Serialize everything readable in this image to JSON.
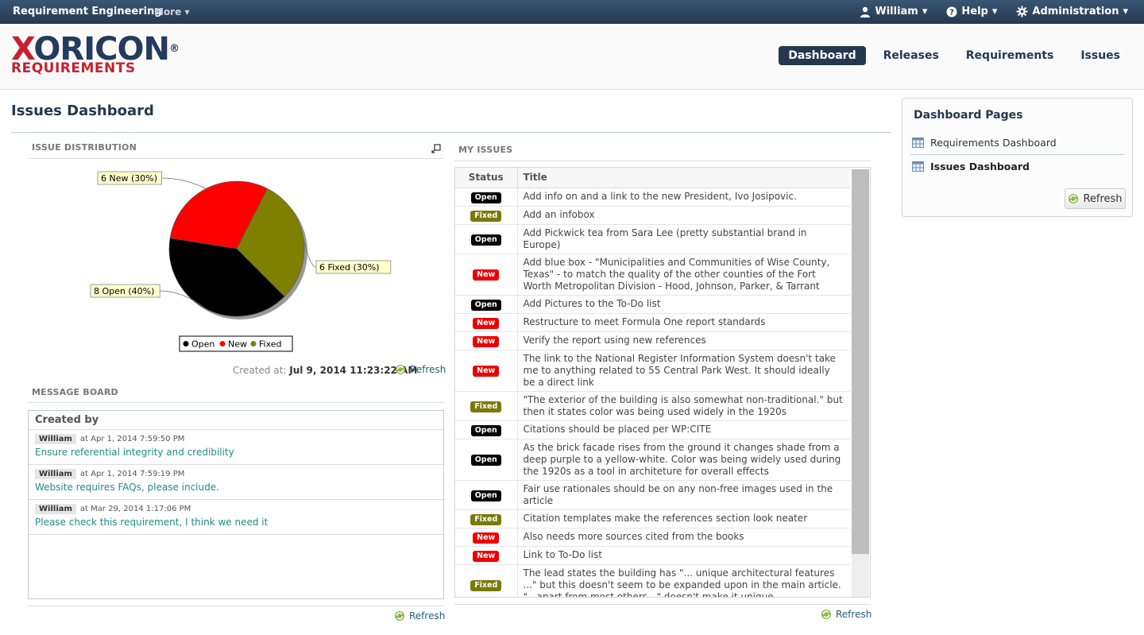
{
  "topbar": {
    "app_title": "Requirement Engineering",
    "more_label": "More",
    "user_label": "William",
    "help_label": "Help",
    "admin_label": "Administration"
  },
  "logo": {
    "line1": "XORICON",
    "line2": "REQUIREMENTS",
    "registered": "®"
  },
  "nav": {
    "dashboard": "Dashboard",
    "releases": "Releases",
    "requirements": "Requirements",
    "issues": "Issues"
  },
  "page": {
    "title": "Issues Dashboard"
  },
  "distribution": {
    "label": "ISSUE DISTRIBUTION",
    "created_prefix": "Created at:",
    "created_value": "Jul 9, 2014 11:23:22 AM",
    "refresh_label": "Refresh"
  },
  "chart_data": {
    "type": "pie",
    "slices": [
      {
        "name": "Open",
        "value": 8,
        "percent": 40,
        "label": "8 Open (40%)",
        "color": "#000000"
      },
      {
        "name": "New",
        "value": 6,
        "percent": 30,
        "label": "6 New (30%)",
        "color": "#ff0000"
      },
      {
        "name": "Fixed",
        "value": 6,
        "percent": 30,
        "label": "6 Fixed (30%)",
        "color": "#808000"
      }
    ],
    "legend": [
      "Open",
      "New",
      "Fixed"
    ],
    "legend_position": "bottom"
  },
  "message_board": {
    "label": "MESSAGE BOARD",
    "column_header": "Created by",
    "messages": [
      {
        "user": "William",
        "timestamp": "at Apr 1, 2014 7:59:50 PM",
        "text": "Ensure referential integrity and credibility"
      },
      {
        "user": "William",
        "timestamp": "at Apr 1, 2014 7:59:19 PM",
        "text": "Website requires FAQs, please include."
      },
      {
        "user": "William",
        "timestamp": "at Mar 29, 2014 1:17:06 PM",
        "text": "Please check this requirement, I think we need it"
      }
    ],
    "refresh_label": "Refresh"
  },
  "my_issues": {
    "label": "MY ISSUES",
    "columns": [
      "Status",
      "Title"
    ],
    "rows": [
      {
        "status": "Open",
        "title": "Add info on and a link to the new President, Ivo Josipovic."
      },
      {
        "status": "Fixed",
        "title": "Add an infobox"
      },
      {
        "status": "Open",
        "title": "Add Pickwick tea from Sara Lee (pretty substantial brand in Europe)"
      },
      {
        "status": "New",
        "title": "Add blue box - \"Municipalities and Communities of Wise County, Texas\" - to match the quality of the other counties of the Fort Worth Metropolitan Division - Hood, Johnson, Parker, & Tarrant"
      },
      {
        "status": "Open",
        "title": "Add Pictures to the To-Do list"
      },
      {
        "status": "New",
        "title": "Restructure to meet Formula One report standards"
      },
      {
        "status": "New",
        "title": "Verify the report using new references"
      },
      {
        "status": "New",
        "title": "The link to the National Register Information System doesn't take me to anything related to 55 Central Park West. It should ideally be a direct link"
      },
      {
        "status": "Fixed",
        "title": "\"The exterior of the building is also somewhat non-traditional.\" but then it states color was being used widely in the 1920s"
      },
      {
        "status": "Open",
        "title": "Citations should be placed per WP:CITE"
      },
      {
        "status": "Open",
        "title": "As the brick facade rises from the ground it changes shade from a deep purple to a yellow-white. Color was being widely used during the 1920s as a tool in architeture for overall effects"
      },
      {
        "status": "Open",
        "title": "Fair use rationales should be on any non-free images used in the article"
      },
      {
        "status": "Fixed",
        "title": "Citation templates make the references section look neater"
      },
      {
        "status": "New",
        "title": "Also needs more sources cited from the books"
      },
      {
        "status": "New",
        "title": "Link to To-Do list"
      },
      {
        "status": "Fixed",
        "title": "The lead states the building has \"... unique architectural features ...\" but this doesn't seem to be expanded upon in the main article. \"...apart from most others...\" doesn't make it unique"
      }
    ],
    "refresh_label": "Refresh"
  },
  "dashboard_pages": {
    "title": "Dashboard Pages",
    "items": [
      "Requirements Dashboard",
      "Issues Dashboard"
    ],
    "refresh_label": "Refresh"
  }
}
